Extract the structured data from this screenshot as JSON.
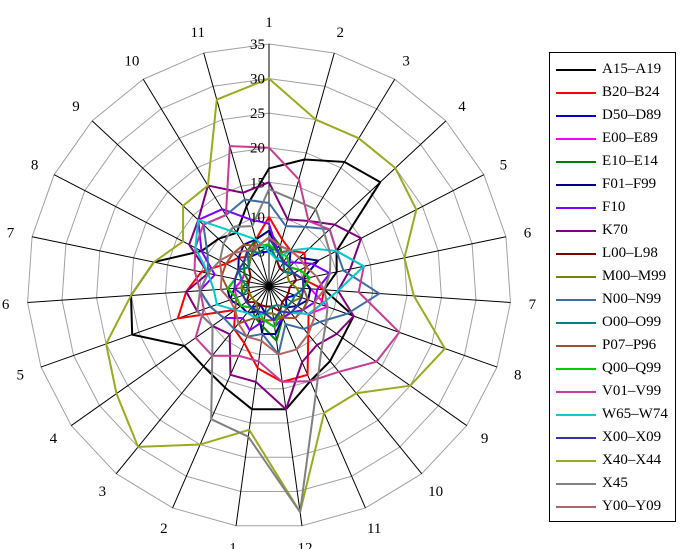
{
  "chart_data": {
    "type": "radar",
    "title": "",
    "axes": [
      "1",
      "2",
      "3",
      "4",
      "5",
      "6",
      "7",
      "8",
      "9",
      "10",
      "11",
      "12",
      "1",
      "2",
      "3",
      "4",
      "5",
      "6",
      "7",
      "8",
      "9",
      "10",
      "11"
    ],
    "radial_ticks": [
      "0",
      "5",
      "10",
      "15",
      "20",
      "25",
      "30",
      "35"
    ],
    "rmax": 35,
    "legend_position": "right",
    "series": [
      {
        "name": "A15–A19",
        "color": "#000000",
        "values": [
          17,
          19,
          21,
          22,
          11,
          10,
          8,
          13,
          13,
          14,
          15,
          18,
          18,
          16,
          15,
          15,
          21,
          20,
          17,
          11,
          10,
          9,
          12
        ]
      },
      {
        "name": "B20–B24",
        "color": "#ff0000",
        "values": [
          10,
          7,
          6,
          7,
          6,
          5,
          8,
          8,
          7,
          9,
          14,
          14,
          12,
          9,
          8,
          6,
          14,
          12,
          10,
          7,
          6,
          5,
          7
        ]
      },
      {
        "name": "D50–D89",
        "color": "#0000cc",
        "values": [
          5,
          6,
          6,
          4,
          5,
          6,
          5,
          4,
          3,
          4,
          5,
          4,
          4,
          3,
          4,
          5,
          6,
          5,
          4,
          5,
          4,
          5,
          5
        ]
      },
      {
        "name": "E00–E89",
        "color": "#ff00ff",
        "values": [
          7,
          5,
          4,
          4,
          4,
          5,
          6,
          9,
          7,
          5,
          5,
          5,
          4,
          4,
          5,
          5,
          5,
          5,
          4,
          4,
          5,
          6,
          6
        ]
      },
      {
        "name": "E10–E14",
        "color": "#008000",
        "values": [
          8,
          6,
          4,
          3,
          4,
          5,
          6,
          6,
          6,
          5,
          5,
          8,
          6,
          5,
          4,
          4,
          4,
          4,
          3,
          4,
          5,
          6,
          7
        ]
      },
      {
        "name": "F01–F99",
        "color": "#000080",
        "values": [
          8,
          5,
          6,
          6,
          8,
          5,
          6,
          6,
          5,
          4,
          5,
          7,
          7,
          4,
          5,
          5,
          6,
          6,
          5,
          5,
          6,
          7,
          7
        ]
      },
      {
        "name": "F10",
        "color": "#7f00ff",
        "values": [
          9,
          5,
          4,
          5,
          7,
          9,
          7,
          7,
          6,
          5,
          5,
          6,
          5,
          7,
          6,
          8,
          9,
          10,
          8,
          11,
          14,
          13,
          10
        ]
      },
      {
        "name": "K70",
        "color": "#800080",
        "values": [
          15,
          10,
          11,
          13,
          15,
          12,
          10,
          13,
          12,
          11,
          12,
          18,
          14,
          14,
          9,
          10,
          11,
          12,
          9,
          13,
          14,
          17,
          14
        ]
      },
      {
        "name": "L00–L98",
        "color": "#800000",
        "values": [
          6,
          4,
          3,
          3,
          4,
          4,
          3,
          3,
          3,
          3,
          4,
          3,
          3,
          3,
          3,
          4,
          3,
          3,
          3,
          3,
          4,
          5,
          6
        ]
      },
      {
        "name": "M00–M99",
        "color": "#808000",
        "values": [
          7,
          5,
          4,
          4,
          3,
          3,
          4,
          5,
          4,
          4,
          5,
          4,
          4,
          4,
          3,
          3,
          3,
          4,
          4,
          5,
          4,
          5,
          6
        ]
      },
      {
        "name": "N00–N99",
        "color": "#3c6ea5",
        "values": [
          12,
          9,
          10,
          12,
          11,
          11,
          16,
          12,
          9,
          8,
          6,
          10,
          7,
          8,
          8,
          8,
          9,
          10,
          9,
          10,
          13,
          12,
          13
        ]
      },
      {
        "name": "O00–O99",
        "color": "#008080",
        "values": [
          6,
          4,
          4,
          3,
          4,
          5,
          5,
          4,
          4,
          4,
          3,
          3,
          4,
          4,
          4,
          4,
          4,
          3,
          4,
          5,
          4,
          6,
          5
        ]
      },
      {
        "name": "P07–P96",
        "color": "#a0522d",
        "values": [
          7,
          5,
          6,
          6,
          6,
          5,
          5,
          6,
          6,
          6,
          5,
          5,
          5,
          5,
          7,
          6,
          5,
          6,
          7,
          7,
          7,
          7,
          6
        ]
      },
      {
        "name": "Q00–Q99",
        "color": "#00cc00",
        "values": [
          6,
          5,
          5,
          4,
          5,
          6,
          5,
          5,
          5,
          5,
          4,
          6,
          5,
          4,
          4,
          5,
          5,
          6,
          5,
          5,
          5,
          6,
          6
        ]
      },
      {
        "name": "V01–V99",
        "color": "#c83c96",
        "values": [
          20,
          16,
          11,
          12,
          11,
          14,
          13,
          20,
          19,
          16,
          15,
          14,
          11,
          11,
          13,
          13,
          10,
          10,
          11,
          12,
          13,
          12,
          21
        ]
      },
      {
        "name": "W65–W74",
        "color": "#00cccc",
        "values": [
          5,
          4,
          6,
          8,
          11,
          14,
          10,
          8,
          7,
          5,
          4,
          5,
          4,
          5,
          5,
          6,
          8,
          8,
          9,
          12,
          14,
          9,
          7
        ]
      },
      {
        "name": "X00–X09",
        "color": "#3333aa",
        "values": [
          7,
          5,
          4,
          4,
          4,
          5,
          5,
          5,
          5,
          5,
          4,
          5,
          4,
          4,
          4,
          4,
          4,
          5,
          5,
          5,
          5,
          6,
          6
        ]
      },
      {
        "name": "X40–X44",
        "color": "#9aaa20",
        "values": [
          30,
          25,
          25,
          25,
          24,
          20,
          21,
          27,
          25,
          20,
          20,
          33,
          21,
          25,
          30,
          27,
          25,
          20,
          17,
          14,
          17,
          17,
          28
        ]
      },
      {
        "name": "X45",
        "color": "#808080",
        "values": [
          14,
          13,
          13,
          11,
          10,
          9,
          8,
          9,
          10,
          12,
          17,
          33,
          22,
          21,
          13,
          10,
          11,
          10,
          9,
          8,
          9,
          10,
          9
        ]
      },
      {
        "name": "Y00–Y09",
        "color": "#b46464",
        "values": [
          7,
          6,
          6,
          6,
          6,
          7,
          8,
          7,
          8,
          9,
          10,
          10,
          8,
          8,
          7,
          6,
          6,
          7,
          7,
          8,
          7,
          6,
          6
        ]
      }
    ]
  }
}
